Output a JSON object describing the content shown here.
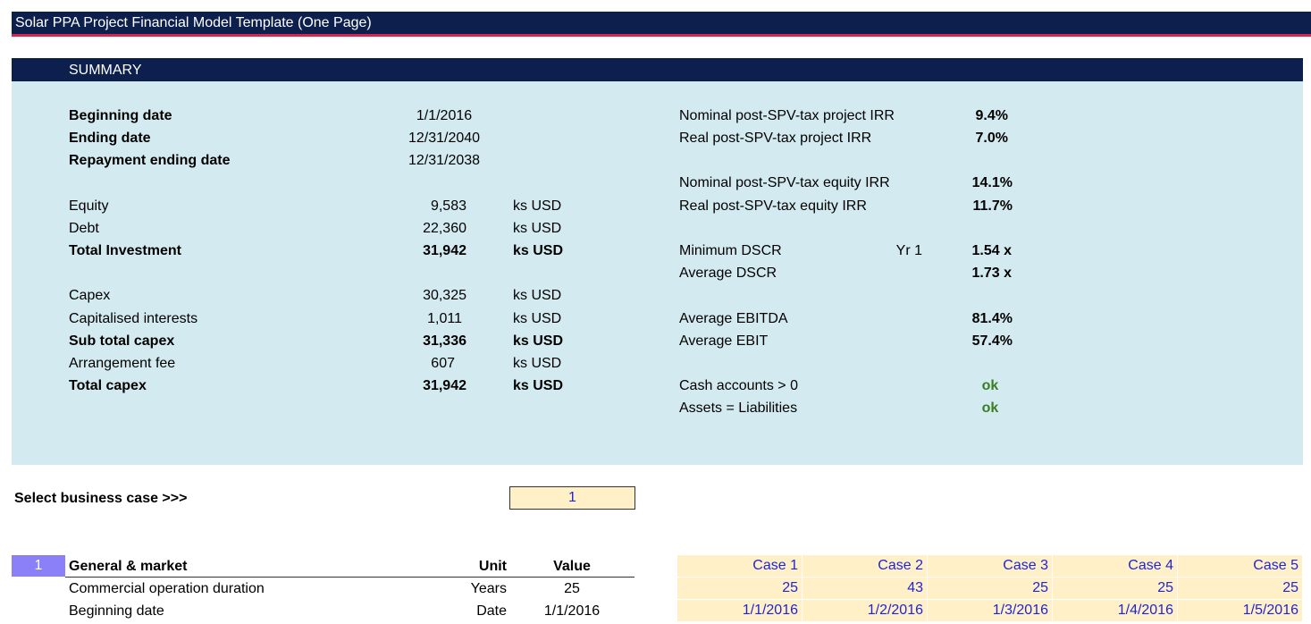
{
  "title": "Solar PPA Project Financial Model Template (One Page)",
  "summary": {
    "header": "SUMMARY",
    "dates": [
      {
        "label": "Beginning date",
        "value": "1/1/2016"
      },
      {
        "label": "Ending date",
        "value": "12/31/2040"
      },
      {
        "label": "Repayment ending date",
        "value": "12/31/2038"
      }
    ],
    "financing": [
      {
        "label": "Equity",
        "value": "9,583",
        "unit": "ks USD"
      },
      {
        "label": "Debt",
        "value": "22,360",
        "unit": "ks USD"
      },
      {
        "label": "Total Investment",
        "value": "31,942",
        "unit": "ks USD"
      }
    ],
    "capex": [
      {
        "label": "Capex",
        "value": "30,325",
        "unit": "ks USD"
      },
      {
        "label": "Capitalised interests",
        "value": "1,011",
        "unit": "ks USD"
      },
      {
        "label": "Sub total capex",
        "value": "31,336",
        "unit": "ks USD"
      },
      {
        "label": "Arrangement fee",
        "value": "607",
        "unit": "ks USD"
      },
      {
        "label": "Total capex",
        "value": "31,942",
        "unit": "ks USD"
      }
    ],
    "metrics": [
      {
        "label": "Nominal post-SPV-tax project IRR",
        "value": "9.4%"
      },
      {
        "label": "Real post-SPV-tax project IRR",
        "value": "7.0%"
      },
      {
        "label": "Nominal post-SPV-tax equity IRR",
        "value": "14.1%"
      },
      {
        "label": "Real post-SPV-tax equity IRR",
        "value": "11.7%"
      },
      {
        "label": "Minimum DSCR",
        "extra": "Yr 1",
        "value": "1.54 x"
      },
      {
        "label": "Average DSCR",
        "value": "1.73 x"
      },
      {
        "label": "Average EBITDA",
        "value": "81.4%"
      },
      {
        "label": "Average EBIT",
        "value": "57.4%"
      }
    ],
    "checks": [
      {
        "label": "Cash accounts > 0",
        "value": "ok"
      },
      {
        "label": "Assets = Liabilities",
        "value": "ok"
      }
    ]
  },
  "selector": {
    "label": "Select business case >>>",
    "value": "1"
  },
  "general": {
    "section_number": "1",
    "section_title": "General & market",
    "unit_header": "Unit",
    "value_header": "Value",
    "rows": [
      {
        "label": "Commercial operation duration",
        "unit": "Years",
        "value": "25"
      },
      {
        "label": "Beginning date",
        "unit": "Date",
        "value": "1/1/2016"
      }
    ],
    "cases": {
      "headers": [
        "Case 1",
        "Case 2",
        "Case 3",
        "Case 4",
        "Case 5"
      ],
      "duration": [
        "25",
        "43",
        "25",
        "25",
        "25"
      ],
      "beginning": [
        "1/1/2016",
        "1/2/2016",
        "1/3/2016",
        "1/4/2016",
        "1/5/2016"
      ]
    }
  }
}
